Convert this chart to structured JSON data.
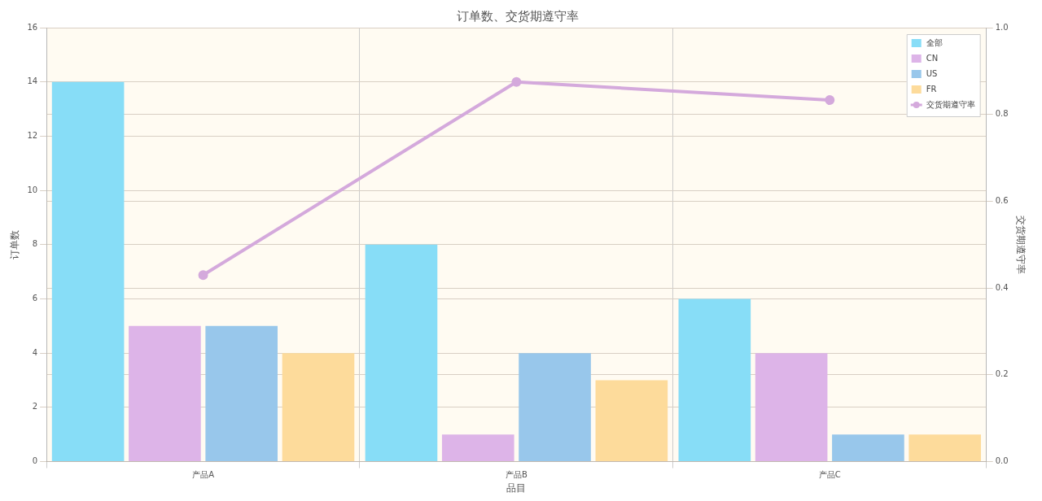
{
  "chart_data": {
    "type": "bar",
    "title": "订单数、交货期遵守率",
    "xlabel": "品目",
    "ylabel": "订单数",
    "y2label": "交货期遵守率",
    "categories": [
      "产品A",
      "产品B",
      "产品C"
    ],
    "series": [
      {
        "name": "全部",
        "color": "#87ddf7",
        "values": [
          14,
          8,
          6
        ]
      },
      {
        "name": "CN",
        "color": "#ddb4e8",
        "values": [
          5,
          1,
          4
        ]
      },
      {
        "name": "US",
        "color": "#98c7eb",
        "values": [
          5,
          4,
          1
        ]
      },
      {
        "name": "FR",
        "color": "#fddb9b",
        "values": [
          4,
          3,
          1
        ]
      },
      {
        "name": "交货期遵守率",
        "type": "line",
        "axis": "y2",
        "color": "#d4a9dc",
        "values": [
          0.43,
          0.875,
          0.833
        ]
      }
    ],
    "ylim": [
      0,
      16
    ],
    "yticks": [
      0,
      2,
      4,
      6,
      8,
      10,
      12,
      14,
      16
    ],
    "y2lim": [
      0,
      1
    ],
    "y2ticks": [
      {
        "value": 0,
        "label": "0.0"
      },
      0.2,
      0.4,
      0.6,
      0.8,
      {
        "value": 1,
        "label": "1.0"
      }
    ],
    "grid": true,
    "legend": "top right",
    "marker": "circle"
  }
}
